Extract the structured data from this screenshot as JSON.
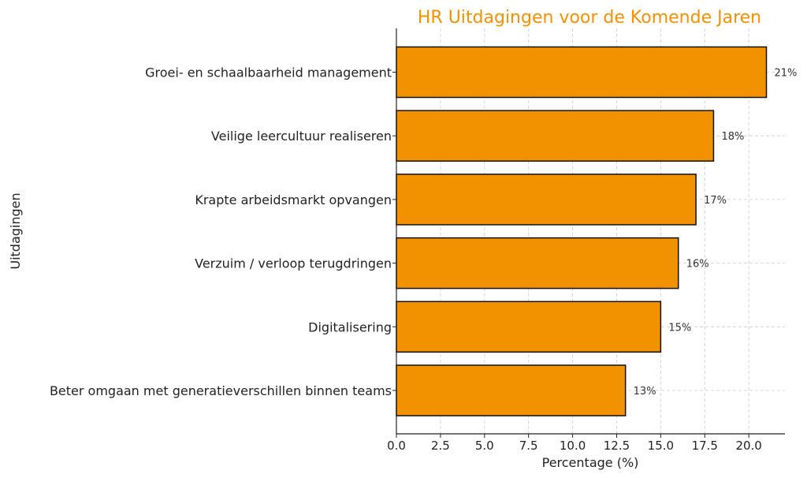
{
  "chart_data": {
    "type": "bar",
    "orientation": "horizontal",
    "title": "HR Uitdagingen voor de Komende Jaren",
    "xlabel": "Percentage (%)",
    "ylabel": "Uitdagingen",
    "categories": [
      "Groei- en schaalbaarheid management",
      "Veilige leercultuur realiseren",
      "Krapte arbeidsmarkt opvangen",
      "Verzuim / verloop terugdringen",
      "Digitalisering",
      "Beter omgaan met generatieverschillen binnen teams"
    ],
    "values": [
      21,
      18,
      17,
      16,
      15,
      13
    ],
    "data_labels": [
      "21%",
      "18%",
      "17%",
      "16%",
      "15%",
      "13%"
    ],
    "xticks": [
      0.0,
      2.5,
      5.0,
      7.5,
      10.0,
      12.5,
      15.0,
      17.5,
      20.0
    ],
    "xtick_labels": [
      "0.0",
      "2.5",
      "5.0",
      "7.5",
      "10.0",
      "12.5",
      "15.0",
      "17.5",
      "20.0"
    ],
    "xlim": [
      0,
      22.05
    ],
    "grid": true,
    "colors": {
      "bar_fill": "#F39200",
      "bar_edge": "#111111",
      "title": "#F39200",
      "grid": "#cccccc"
    }
  }
}
